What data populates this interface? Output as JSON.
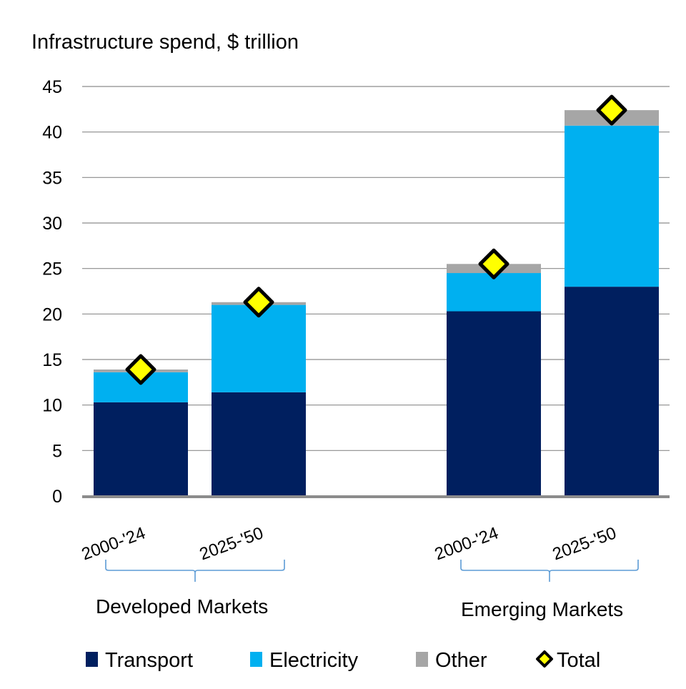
{
  "chart_data": {
    "type": "bar",
    "stacked": true,
    "title": "Infrastructure spend, $ trillion",
    "xlabel": "",
    "ylabel": "",
    "ylim": [
      0,
      45
    ],
    "yticks": [
      0,
      5,
      10,
      15,
      20,
      25,
      30,
      35,
      40,
      45
    ],
    "grid": true,
    "legend_position": "bottom",
    "groups": [
      {
        "label": "Developed Markets",
        "categories": [
          "2000-'24",
          "2025-'50"
        ]
      },
      {
        "label": "Emerging Markets",
        "categories": [
          "2000-'24",
          "2025-'50"
        ]
      }
    ],
    "categories": [
      "Developed Markets 2000-'24",
      "Developed Markets 2025-'50",
      "Emerging Markets 2000-'24",
      "Emerging Markets 2025-'50"
    ],
    "category_tick_labels": [
      "2000-'24",
      "2025-'50",
      "2000-'24",
      "2025-'50"
    ],
    "series": [
      {
        "name": "Transport",
        "color": "#001F5F",
        "values": [
          10.3,
          11.4,
          20.3,
          23.0
        ]
      },
      {
        "name": "Electricity",
        "color": "#00B0F0",
        "values": [
          3.3,
          9.6,
          4.2,
          17.7
        ]
      },
      {
        "name": "Other",
        "color": "#A6A6A6",
        "values": [
          0.3,
          0.3,
          1.0,
          1.7
        ]
      }
    ],
    "total": {
      "name": "Total",
      "marker": "diamond",
      "color": "#FFFF00",
      "values": [
        13.9,
        21.3,
        25.5,
        42.4
      ]
    }
  }
}
